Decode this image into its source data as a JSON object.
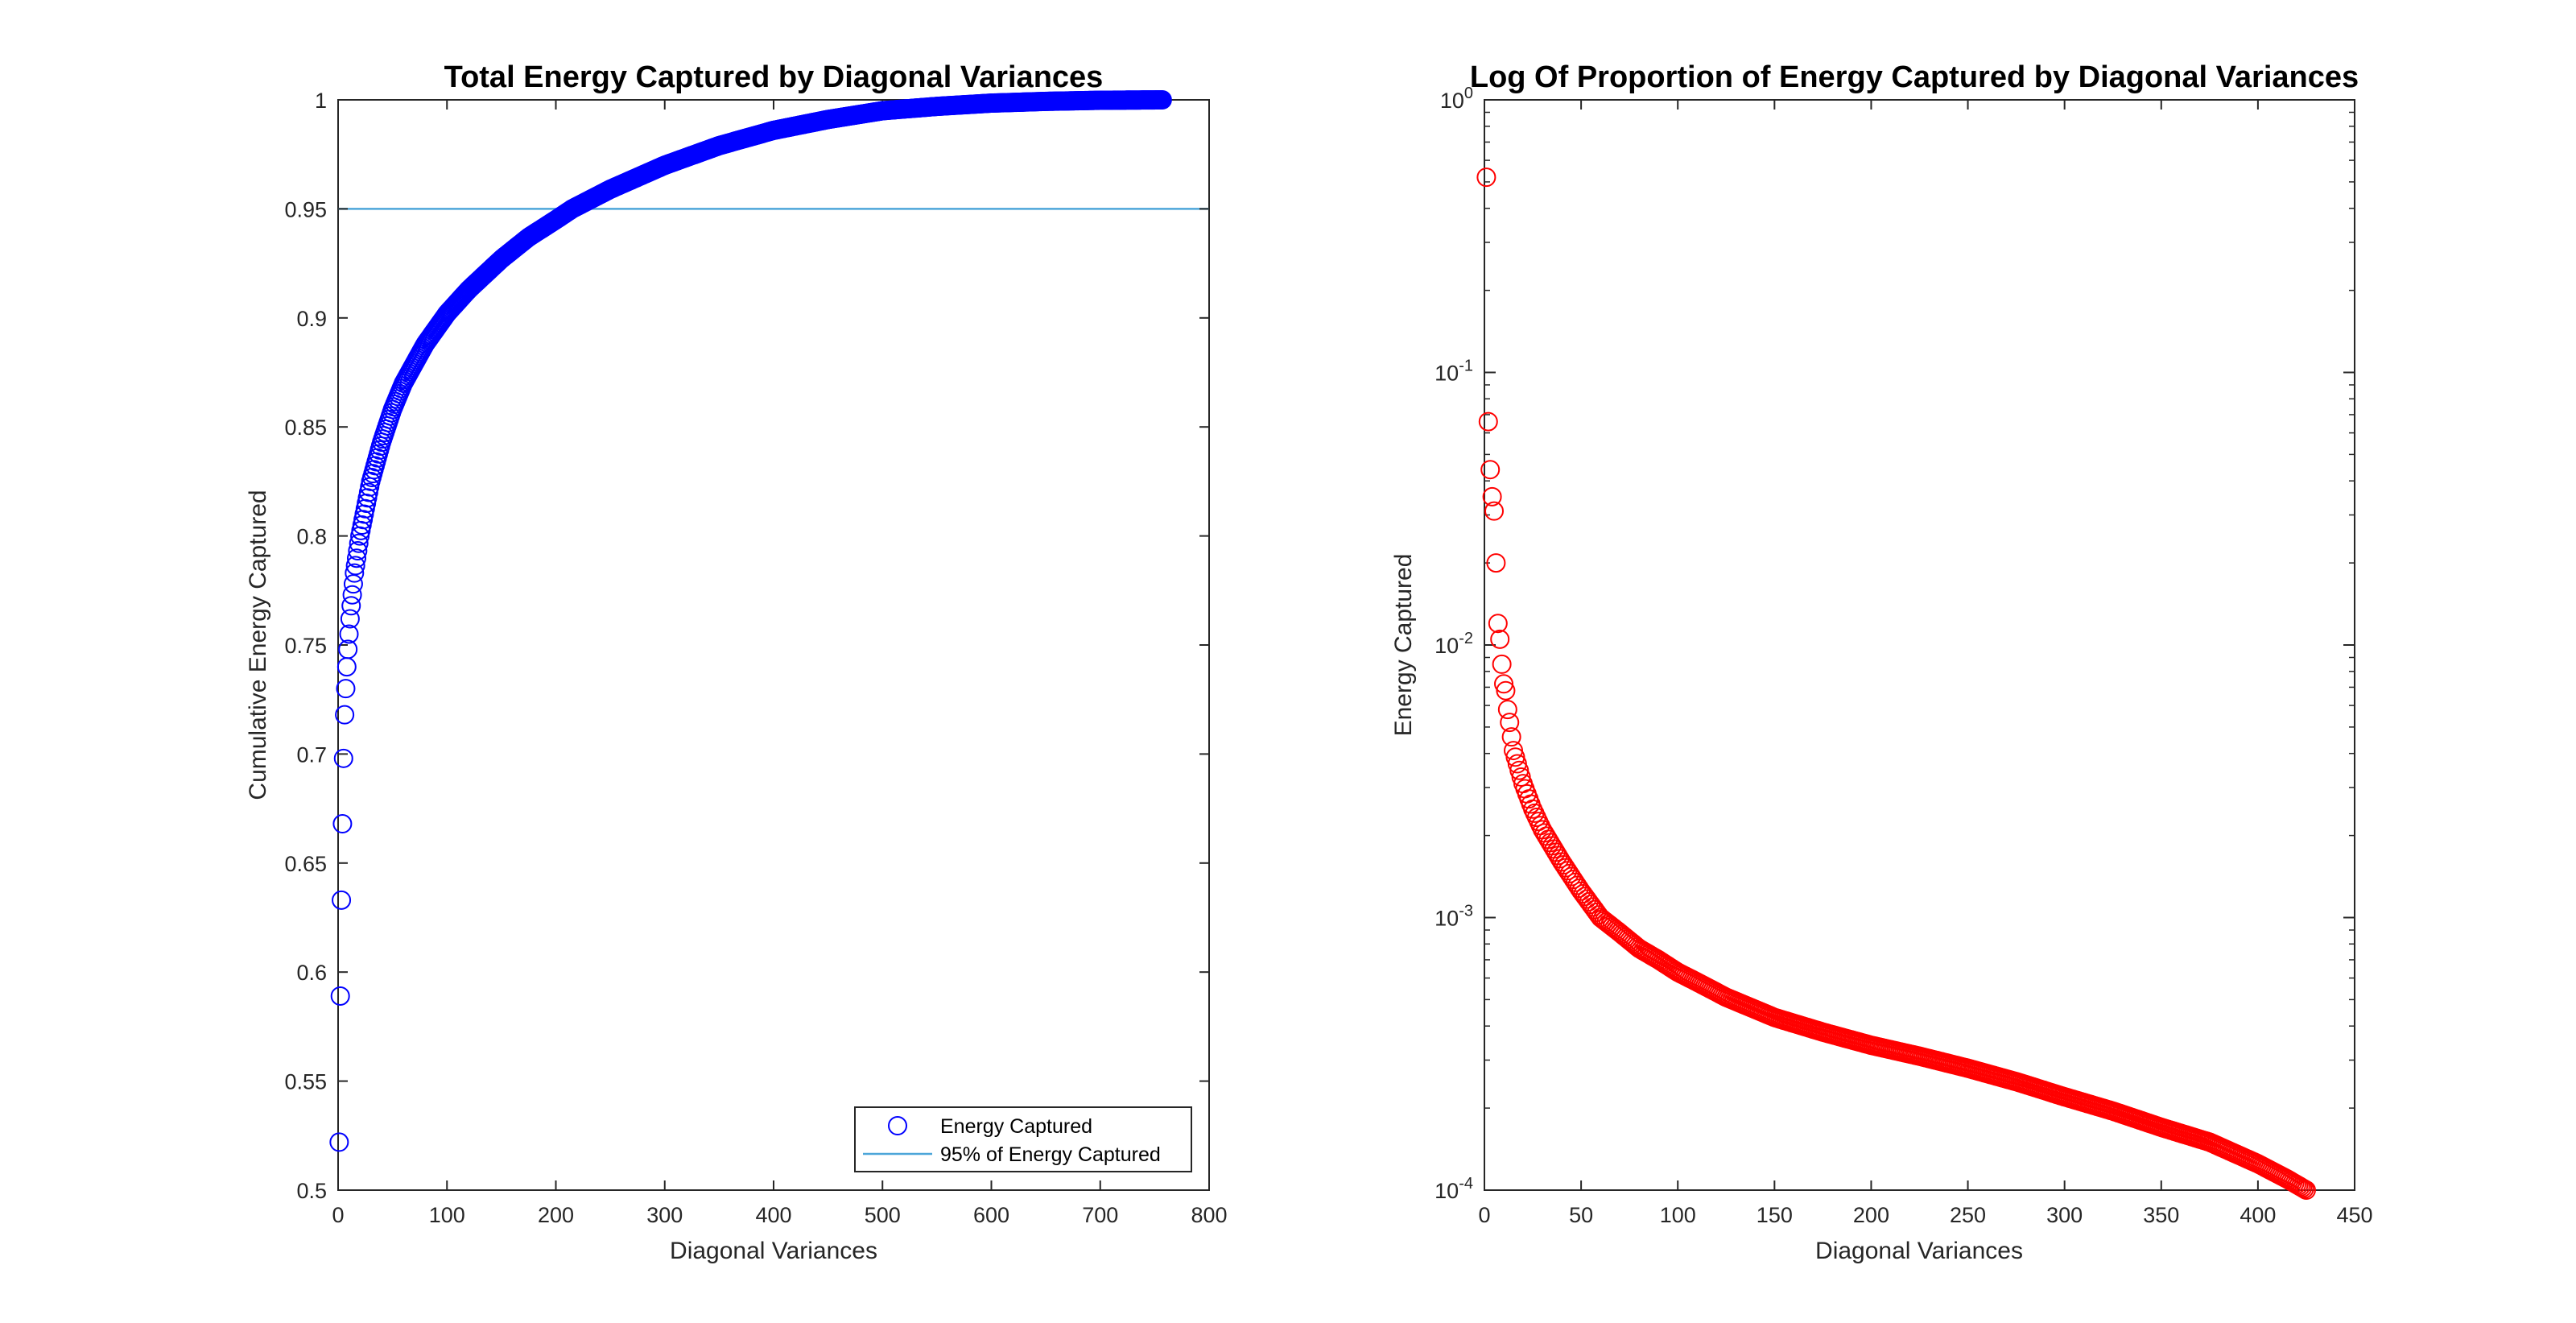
{
  "chart_data": [
    {
      "type": "scatter",
      "title": "Total Energy Captured by Diagonal Variances",
      "xlabel": "Diagonal Variances",
      "ylabel": "Cumulative Energy Captured",
      "xlim": [
        0,
        800
      ],
      "ylim": [
        0.5,
        1
      ],
      "xticks": [
        "0",
        "100",
        "200",
        "300",
        "400",
        "500",
        "600",
        "700",
        "800"
      ],
      "yticks": [
        "0.5",
        "0.55",
        "0.6",
        "0.65",
        "0.7",
        "0.75",
        "0.8",
        "0.85",
        "0.9",
        "0.95",
        "1"
      ],
      "grid": false,
      "legend_position": "bottom-right",
      "series": [
        {
          "name": "Energy Captured",
          "marker": "open-circle",
          "color": "#0000ff",
          "n_points": 757,
          "x": [
            1,
            2,
            3,
            4,
            5,
            6,
            7,
            8,
            9,
            10,
            11,
            12,
            13,
            14,
            15,
            20,
            30,
            40,
            50,
            60,
            80,
            100,
            120,
            150,
            175,
            200,
            215,
            250,
            300,
            350,
            400,
            450,
            500,
            550,
            600,
            650,
            700,
            757
          ],
          "y": [
            0.522,
            0.589,
            0.633,
            0.668,
            0.698,
            0.718,
            0.73,
            0.74,
            0.748,
            0.755,
            0.762,
            0.768,
            0.773,
            0.778,
            0.783,
            0.8,
            0.825,
            0.843,
            0.858,
            0.87,
            0.888,
            0.902,
            0.913,
            0.927,
            0.937,
            0.945,
            0.95,
            0.959,
            0.97,
            0.979,
            0.986,
            0.991,
            0.995,
            0.997,
            0.9985,
            0.9993,
            0.9998,
            1.0
          ]
        },
        {
          "name": "95% of Energy Captured",
          "type": "line",
          "color": "#4da6d9",
          "y": 0.95
        }
      ]
    },
    {
      "type": "scatter",
      "title": "Log Of Proportion of Energy Captured by Diagonal Variances",
      "xlabel": "Diagonal Variances",
      "ylabel": "Energy Captured",
      "xlim": [
        0,
        450
      ],
      "ylim": [
        0.0001,
        1
      ],
      "yscale": "log",
      "xticks": [
        "0",
        "50",
        "100",
        "150",
        "200",
        "250",
        "300",
        "350",
        "400",
        "450"
      ],
      "yticks": [
        "10^-4",
        "10^-3",
        "10^-2",
        "10^-1",
        "10^0"
      ],
      "grid": false,
      "series": [
        {
          "marker": "open-circle",
          "color": "#ff0000",
          "n_points": 425,
          "x": [
            1,
            2,
            3,
            4,
            5,
            6,
            7,
            8,
            9,
            10,
            11,
            12,
            13,
            14,
            15,
            20,
            25,
            30,
            40,
            50,
            60,
            70,
            80,
            90,
            100,
            110,
            125,
            150,
            175,
            200,
            225,
            250,
            275,
            300,
            325,
            350,
            375,
            400,
            415,
            425
          ],
          "y": [
            0.52,
            0.066,
            0.044,
            0.035,
            0.031,
            0.02,
            0.012,
            0.0105,
            0.0085,
            0.0072,
            0.0068,
            0.0058,
            0.0052,
            0.0046,
            0.0041,
            0.0031,
            0.0025,
            0.0021,
            0.0016,
            0.00125,
            0.001,
            0.00088,
            0.00077,
            0.0007,
            0.00063,
            0.00058,
            0.00051,
            0.00043,
            0.00038,
            0.00034,
            0.00031,
            0.00028,
            0.00025,
            0.00022,
            0.000195,
            0.00017,
            0.00015,
            0.000125,
            0.00011,
            0.0001
          ]
        }
      ]
    }
  ]
}
